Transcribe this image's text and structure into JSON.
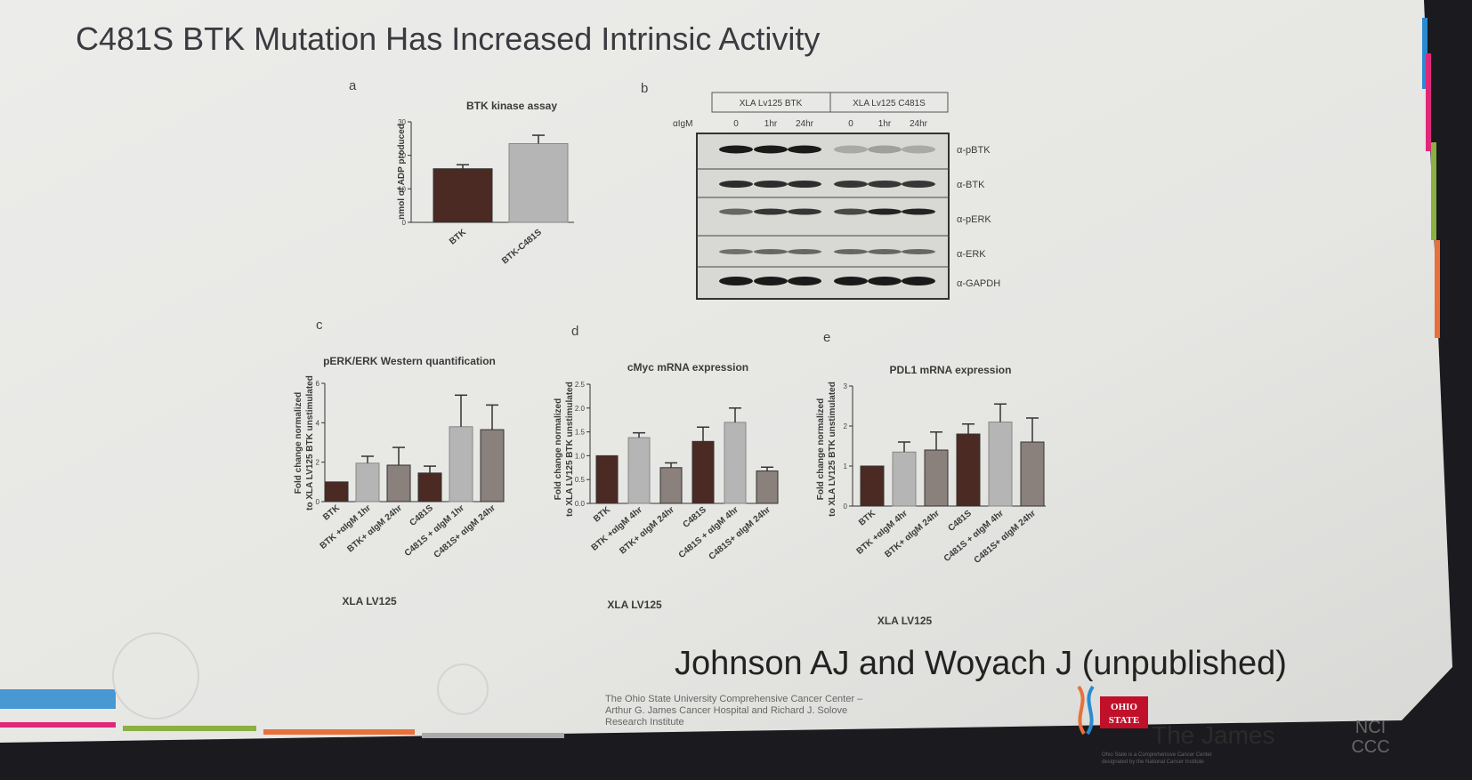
{
  "slide": {
    "title": "C481S BTK Mutation Has Increased Intrinsic Activity",
    "citation": "Johnson AJ and Woyach J (unpublished)",
    "institution_lines": [
      "The Ohio State University Comprehensive Cancer Center –",
      "Arthur G. James Cancer Hospital and Richard J. Solove",
      "Research Institute"
    ],
    "logo": {
      "osu_text_1": "OHIO",
      "osu_text_2": "STATE",
      "name": "The James",
      "tagline_1": "Ohio State is a Comprehensive Cancer Center",
      "tagline_2": "designated by the National Cancer Institute",
      "nci_1": "NCI",
      "nci_2": "CCC"
    },
    "colors": {
      "dark_bar": "#4a2a22",
      "light_bar": "#b5b5b5",
      "mid_bar": "#8a807c",
      "accent_pink": "#e0287a",
      "accent_green": "#8ab040",
      "accent_orange": "#e8703a",
      "accent_blue": "#2a8ad0"
    }
  },
  "western_blot": {
    "panel_label": "b",
    "groups": [
      "XLA Lv125 BTK",
      "XLA Lv125 C481S"
    ],
    "treatment_label": "αIgM",
    "timepoints": [
      "0",
      "1hr",
      "24hr",
      "0",
      "1hr",
      "24hr"
    ],
    "antibodies": [
      "α-pBTK",
      "α-BTK",
      "α-pERK",
      "α-ERK",
      "α-GAPDH"
    ]
  },
  "chart_data": [
    {
      "panel_label": "a",
      "type": "bar",
      "title": "BTK kinase assay",
      "ylabel": "nmol of ADP produced",
      "xlabel": "",
      "categories": [
        "BTK",
        "BTK-C481S"
      ],
      "values": [
        16,
        23.5
      ],
      "errors": [
        1.2,
        2.5
      ],
      "ylim": [
        0,
        30
      ],
      "yticks": [
        "0",
        "10",
        "20",
        "30"
      ],
      "bar_styles": [
        "dark",
        "light"
      ]
    },
    {
      "panel_label": "c",
      "type": "bar",
      "title": "pERK/ERK Western quantification",
      "ylabel": "Fold change normalized to XLA LV125 BTK unstimulated",
      "xlabel": "XLA LV125",
      "categories": [
        "BTK",
        "BTK +αIgM 1hr",
        "BTK+ αIgM 24hr",
        "C481S",
        "C481S + αIgM 1hr",
        "C481S+ αIgM 24hr"
      ],
      "values": [
        1.0,
        1.95,
        1.85,
        1.45,
        3.8,
        3.65
      ],
      "errors": [
        0,
        0.35,
        0.9,
        0.35,
        1.6,
        1.25
      ],
      "ylim": [
        0,
        6
      ],
      "yticks": [
        "0",
        "2",
        "4",
        "6"
      ],
      "bar_styles": [
        "dark",
        "light",
        "mid",
        "dark",
        "light",
        "mid"
      ]
    },
    {
      "panel_label": "d",
      "type": "bar",
      "title": "cMyc mRNA expression",
      "ylabel": "Fold change normalized to XLA LV125 BTK unstimulated",
      "xlabel": "XLA LV125",
      "categories": [
        "BTK",
        "BTK +αIgM 4hr",
        "BTK+ αIgM 24hr",
        "C481S",
        "C481S + αIgM 4hr",
        "C481S+ αIgM 24hr"
      ],
      "values": [
        1.0,
        1.38,
        0.75,
        1.3,
        1.7,
        0.68
      ],
      "errors": [
        0,
        0.1,
        0.1,
        0.3,
        0.3,
        0.08
      ],
      "ylim": [
        0,
        2.5
      ],
      "yticks": [
        "0.0",
        "0.5",
        "1.0",
        "1.5",
        "2.0",
        "2.5"
      ],
      "bar_styles": [
        "dark",
        "light",
        "mid",
        "dark",
        "light",
        "mid"
      ]
    },
    {
      "panel_label": "e",
      "type": "bar",
      "title": "PDL1 mRNA expression",
      "ylabel": "Fold change normalized to XLA LV125 BTK unstimulated",
      "xlabel": "XLA LV125",
      "categories": [
        "BTK",
        "BTK +αIgM 4hr",
        "BTK+ αIgM 24hr",
        "C481S",
        "C481S + αIgM 4hr",
        "C481S+ αIgM 24hr"
      ],
      "values": [
        1.0,
        1.35,
        1.4,
        1.8,
        2.1,
        1.6
      ],
      "errors": [
        0,
        0.25,
        0.45,
        0.25,
        0.45,
        0.6
      ],
      "ylim": [
        0,
        3
      ],
      "yticks": [
        "0",
        "1",
        "2",
        "3"
      ],
      "bar_styles": [
        "dark",
        "light",
        "mid",
        "dark",
        "light",
        "mid"
      ]
    }
  ]
}
